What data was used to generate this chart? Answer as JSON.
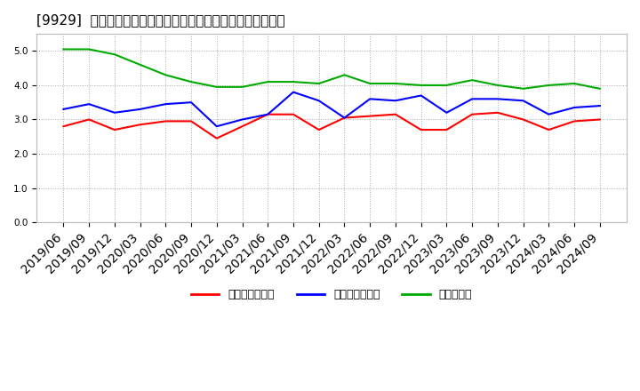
{
  "title": "[9929]  売上債権回転率、買入債務回転率、在庫回転率の推移",
  "ylim": [
    0.0,
    5.5
  ],
  "yticks": [
    0.0,
    1.0,
    2.0,
    3.0,
    4.0,
    5.0
  ],
  "background_color": "#ffffff",
  "plot_bg_color": "#ffffff",
  "grid_color": "#aaaaaa",
  "dates": [
    "2019/06",
    "2019/09",
    "2019/12",
    "2020/03",
    "2020/06",
    "2020/09",
    "2020/12",
    "2021/03",
    "2021/06",
    "2021/09",
    "2021/12",
    "2022/03",
    "2022/06",
    "2022/09",
    "2022/12",
    "2023/03",
    "2023/06",
    "2023/09",
    "2023/12",
    "2024/03",
    "2024/06",
    "2024/09"
  ],
  "series": {
    "売上債権回転率": {
      "color": "#ff0000",
      "values": [
        2.8,
        3.0,
        2.7,
        2.85,
        2.95,
        2.95,
        2.45,
        2.8,
        3.15,
        3.15,
        2.7,
        3.05,
        3.1,
        3.15,
        2.7,
        2.7,
        3.15,
        3.2,
        3.0,
        2.7,
        2.95,
        3.0
      ]
    },
    "買入債務回転率": {
      "color": "#0000ff",
      "values": [
        3.3,
        3.45,
        3.2,
        3.3,
        3.45,
        3.5,
        2.8,
        3.0,
        3.15,
        3.8,
        3.55,
        3.05,
        3.6,
        3.55,
        3.7,
        3.2,
        3.6,
        3.6,
        3.55,
        3.15,
        3.35,
        3.4
      ]
    },
    "在庫回転率": {
      "color": "#00aa00",
      "values": [
        5.05,
        5.05,
        4.9,
        4.6,
        4.3,
        4.1,
        3.95,
        3.95,
        4.1,
        4.1,
        4.05,
        4.3,
        4.05,
        4.05,
        4.0,
        4.0,
        4.15,
        4.0,
        3.9,
        4.0,
        4.05,
        3.9
      ]
    }
  },
  "legend_labels": [
    "売上債権回転率",
    "買入債務回転率",
    "在庫回転率"
  ],
  "title_fontsize": 11,
  "tick_fontsize": 7.5,
  "legend_fontsize": 9,
  "linewidth": 1.5
}
